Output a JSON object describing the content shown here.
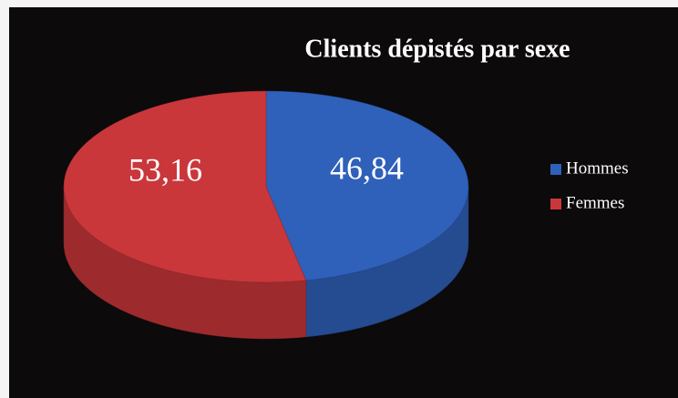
{
  "chart_data": {
    "type": "pie3d",
    "title": "Clients dépistés par sexe",
    "categories": [
      "Hommes",
      "Femmes"
    ],
    "values": [
      46.84,
      53.16
    ],
    "value_labels": [
      "46,84",
      "53,16"
    ],
    "colors": [
      "#2f60ba",
      "#c9373b"
    ],
    "legend": "right"
  }
}
